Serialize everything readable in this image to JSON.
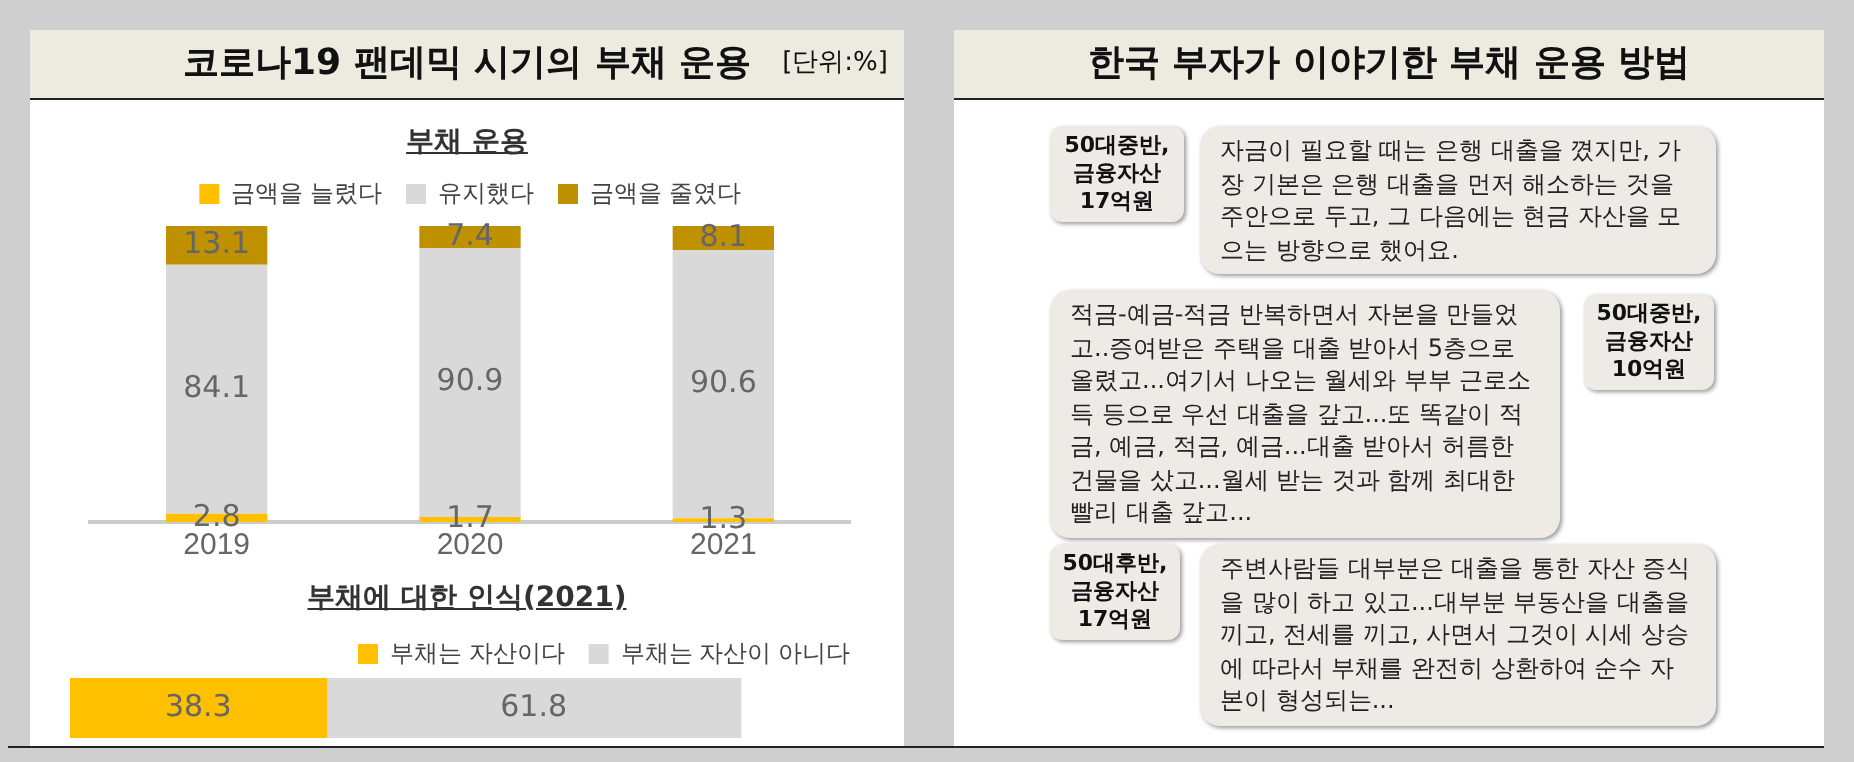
{
  "chart_data": [
    {
      "type": "bar",
      "title": "코로나19 팬데믹 시기의 부채 운용",
      "subtitle": "부채 운용",
      "annotations": [
        "[단위:%]"
      ],
      "categories": [
        "2019",
        "2020",
        "2021"
      ],
      "stacked": true,
      "data_labels": true,
      "legend": "top",
      "tick_labels": "x",
      "grid": false,
      "series": [
        {
          "name": "금액을 늘렸다",
          "color": "#ffc000",
          "values": [
            2.8,
            1.7,
            1.3
          ]
        },
        {
          "name": "유지했다",
          "color": "#d9d9d9",
          "values": [
            84.1,
            90.9,
            90.6
          ]
        },
        {
          "name": "금액을 줄였다",
          "color": "#bf9000",
          "values": [
            13.1,
            7.4,
            8.1
          ]
        }
      ]
    },
    {
      "type": "bar",
      "title": "부채에 대한 인식(2021)",
      "categories": [
        null
      ],
      "orientation": "horizontal",
      "stacked": true,
      "data_labels": true,
      "legend": "top right",
      "tick_labels": false,
      "grid": false,
      "series": [
        {
          "name": "부채는 자산이다",
          "color": "#ffc000",
          "values": [
            38.3
          ]
        },
        {
          "name": "부채는 자산이 아니다",
          "color": "#d9d9d9",
          "values": [
            61.8
          ]
        }
      ]
    },
    {
      "type": "other",
      "title": "한국 부자가 이야기한 부채 운용 방법",
      "annotations": [
        "50대중반, 금융자산 17억원",
        "자금이 필요할 때는 은행 대출을 꼈지만, 가장 기본은 은행 대출을 먼저 해소하는 것을 주안으로 두고, 그 다음에는 현금 자산을 모으는 방향으로 했어요.",
        "50대중반, 금융자산 10억원",
        "적금-예금-적금 반복하면서 자본을 만들었고..증여받은 주택을 대출 받아서 5층으로 올렸고...여기서 나오는 월세와 부부 근로소득 등으로 우선 대출을 갚고...또 똑같이 적금, 예금, 적금, 예금...대출 받아서 허름한 건물을 샀고...월세 받는 것과 함께 최대한 빨리 대출 갚고...",
        "50대후반, 금융자산 17억원",
        "주변사람들 대부분은 대출을 통한 자산 증식을 많이 하고 있고...대부분 부동산을 대출을 끼고, 전세를 끼고, 사면서 그것이 시세 상승에 따라서 부채를 완전히 상환하여 순수 자본이 형성되는..."
      ]
    }
  ]
}
